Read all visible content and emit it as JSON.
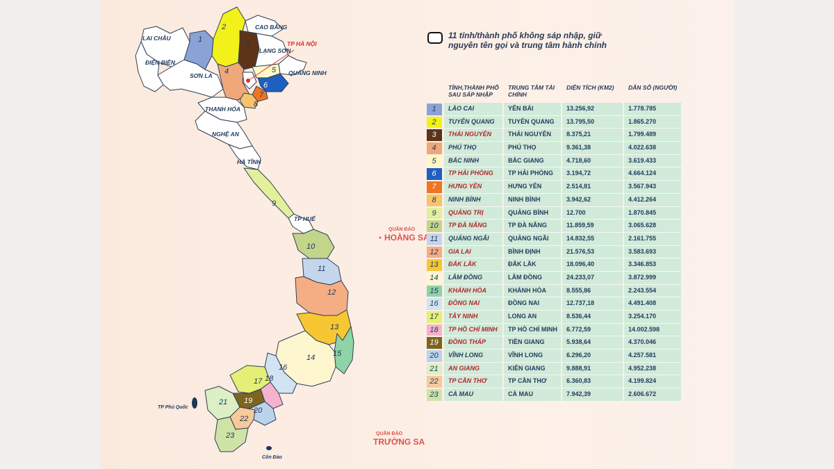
{
  "legend": {
    "text": "11 tỉnh/thành phố không sáp nhập, giữ nguyên tên gọi và trung tâm hành chính"
  },
  "table": {
    "headers": [
      "",
      "TỈNH,THÀNH PHỐ SAU SÁP NHẬP",
      "TRUNG TÂM TÀI CHÍNH",
      "DIỆN TÍCH (KM2)",
      "DÂN SỐ (NGƯỜI)"
    ],
    "rows": [
      {
        "no": "1",
        "name": "LÀO CAI",
        "center": "YÊN BÁI",
        "area": "13.256,92",
        "pop": "1.778.785",
        "color": "#8aa3d6",
        "kept": false
      },
      {
        "no": "2",
        "name": "TUYÊN QUANG",
        "center": "TUYÊN QUANG",
        "area": "13.795,50",
        "pop": "1.865.270",
        "color": "#f2f21a",
        "kept": false
      },
      {
        "no": "3",
        "name": "THÁI NGUYÊN",
        "center": "THÁI NGUYÊN",
        "area": "8.375,21",
        "pop": "1.799.489",
        "color": "#5e3418",
        "kept": false
      },
      {
        "no": "4",
        "name": "PHÚ THỌ",
        "center": "PHÚ THỌ",
        "area": "9.361,38",
        "pop": "4.022.638",
        "color": "#f0a77a",
        "kept": false
      },
      {
        "no": "5",
        "name": "BẮC NINH",
        "center": "BẮC GIANG",
        "area": "4.718,60",
        "pop": "3.619.433",
        "color": "#fff8c6",
        "kept": false
      },
      {
        "no": "6",
        "name": "TP HẢI PHÒNG",
        "center": "TP HẢI PHÒNG",
        "area": "3.194,72",
        "pop": "4.664.124",
        "color": "#1f5fbf",
        "kept": false
      },
      {
        "no": "7",
        "name": "HƯNG YÊN",
        "center": "HƯNG YÊN",
        "area": "2.514,81",
        "pop": "3.567.943",
        "color": "#f07521",
        "kept": false
      },
      {
        "no": "8",
        "name": "NINH BÌNH",
        "center": "NINH BÌNH",
        "area": "3.942,62",
        "pop": "4.412.264",
        "color": "#f7c46c",
        "kept": false
      },
      {
        "no": "9",
        "name": "QUẢNG TRỊ",
        "center": "QUẢNG BÌNH",
        "area": "12.700",
        "pop": "1.870.845",
        "color": "#e3ef9b",
        "kept": false
      },
      {
        "no": "10",
        "name": "TP ĐÀ NẴNG",
        "center": "TP ĐÀ NẴNG",
        "area": "11.859,59",
        "pop": "3.065.628",
        "color": "#c2d58a",
        "kept": false
      },
      {
        "no": "11",
        "name": "QUẢNG NGÃI",
        "center": "QUẢNG NGÃI",
        "area": "14.832,55",
        "pop": "2.161.755",
        "color": "#c4d6ec",
        "kept": false
      },
      {
        "no": "12",
        "name": "GIA LAI",
        "center": "BÌNH ĐỊNH",
        "area": "21.576,53",
        "pop": "3.583.693",
        "color": "#f5ae84",
        "kept": false
      },
      {
        "no": "13",
        "name": "ĐẮK LẮK",
        "center": "ĐẮK LẮK",
        "area": "18.096,40",
        "pop": "3.346.853",
        "color": "#f7c733",
        "kept": false
      },
      {
        "no": "14",
        "name": "LÂM ĐỒNG",
        "center": "LÂM ĐỒNG",
        "area": "24.233,07",
        "pop": "3.872.999",
        "color": "#fdf6cf",
        "kept": false
      },
      {
        "no": "15",
        "name": "KHÁNH HÒA",
        "center": "KHÁNH HÒA",
        "area": "8.555,86",
        "pop": "2.243.554",
        "color": "#8fd3a6",
        "kept": false
      },
      {
        "no": "16",
        "name": "ĐỒNG NAI",
        "center": "ĐỒNG NAI",
        "area": "12.737,18",
        "pop": "4.491.408",
        "color": "#d2e3f1",
        "kept": false
      },
      {
        "no": "17",
        "name": "TÂY NINH",
        "center": "LONG AN",
        "area": "8.536,44",
        "pop": "3.254.170",
        "color": "#e4ef76",
        "kept": false
      },
      {
        "no": "18",
        "name": "TP HỒ CHÍ MINH",
        "center": "TP HỒ CHÍ MINH",
        "area": "6.772,59",
        "pop": "14.002.598",
        "color": "#f4b2cc",
        "kept": false
      },
      {
        "no": "19",
        "name": "ĐỒNG THÁP",
        "center": "TIỀN GIANG",
        "area": "5.938,64",
        "pop": "4.370.046",
        "color": "#7f6420",
        "kept": false
      },
      {
        "no": "20",
        "name": "VĨNH LONG",
        "center": "VĨNH LONG",
        "area": "6.296,20",
        "pop": "4.257.581",
        "color": "#bcd3ec",
        "kept": false
      },
      {
        "no": "21",
        "name": "AN GIANG",
        "center": "KIÊN GIANG",
        "area": "9.888,91",
        "pop": "4.952.238",
        "color": "#dcefc5",
        "kept": false
      },
      {
        "no": "22",
        "name": "TP CẦN THƠ",
        "center": "TP CẦN THƠ",
        "area": "6.360,83",
        "pop": "4.199.824",
        "color": "#f7c99b",
        "kept": false
      },
      {
        "no": "23",
        "name": "CÀ MAU",
        "center": "CÀ MAU",
        "area": "7.942,39",
        "pop": "2.606.672",
        "color": "#cfe3a7",
        "kept": false
      }
    ]
  },
  "map": {
    "labels": {
      "lai_chau": "LAI CHÂU",
      "cao_bang": "CAO BẰNG",
      "lang_son": "LẠNG SƠN",
      "dien_bien": "ĐIỆN BIÊN",
      "son_la": "SƠN LA",
      "quang_ninh": "QUẢNG NINH",
      "thanh_hoa": "THANH HÓA",
      "nghe_an": "NGHỆ AN",
      "ha_tinh": "HÀ TĨNH",
      "tp_hue": "TP HUẾ",
      "tp_ha_noi": "TP HÀ NỘI",
      "phu_quoc": "TP Phú Quốc",
      "con_dao": "Côn Đảo"
    },
    "islands": {
      "hoang_sa_small": "QUẦN ĐẢO",
      "hoang_sa_big": "HOÀNG SA",
      "truong_sa_small": "QUẦN ĐẢO",
      "truong_sa_big": "TRƯỜNG SA"
    },
    "region_numbers": [
      "1",
      "2",
      "3",
      "4",
      "5",
      "6",
      "7",
      "8",
      "9",
      "10",
      "11",
      "12",
      "13",
      "14",
      "15",
      "16",
      "17",
      "18",
      "19",
      "20",
      "21",
      "22",
      "23"
    ],
    "colors": {
      "unmerged": "#ffffff",
      "border": "#2d3e55",
      "hanoi_marker": "#e03131",
      "island_label": "#d9534f"
    }
  }
}
